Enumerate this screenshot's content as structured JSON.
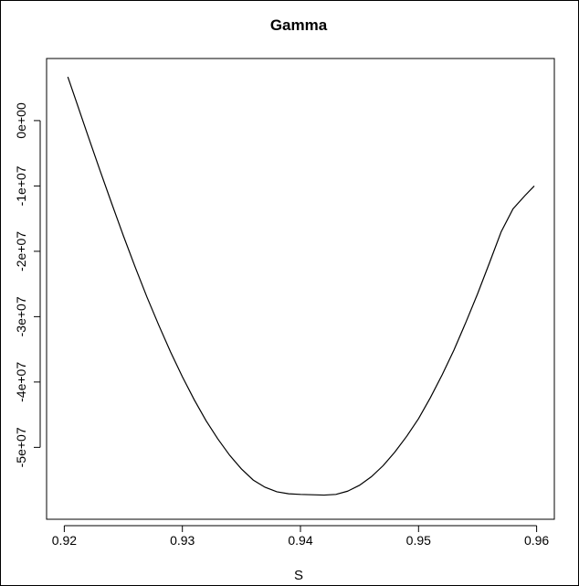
{
  "chart_data": {
    "type": "line",
    "title": "Gamma",
    "xlabel": "S",
    "ylabel": "",
    "xlim": [
      0.9185,
      0.9615
    ],
    "ylim": [
      -61000000,
      9500000
    ],
    "grid": false,
    "legend": "none",
    "line_color": "#000000",
    "x_ticks": [
      0.92,
      0.93,
      0.94,
      0.95,
      0.96
    ],
    "x_tick_labels": [
      "0.92",
      "0.93",
      "0.94",
      "0.95",
      "0.96"
    ],
    "y_ticks": [
      0,
      -10000000,
      -20000000,
      -30000000,
      -40000000,
      -50000000
    ],
    "y_tick_labels": [
      "0e+00",
      "-1e+07",
      "-2e+07",
      "-3e+07",
      "-4e+07",
      "-5e+07"
    ],
    "series": [
      {
        "x": [
          0.9203,
          0.921,
          0.922,
          0.923,
          0.924,
          0.925,
          0.926,
          0.927,
          0.928,
          0.929,
          0.93,
          0.931,
          0.932,
          0.933,
          0.934,
          0.935,
          0.936,
          0.937,
          0.938,
          0.939,
          0.94,
          0.941,
          0.942,
          0.943,
          0.944,
          0.945,
          0.946,
          0.947,
          0.948,
          0.949,
          0.95,
          0.951,
          0.952,
          0.953,
          0.954,
          0.955,
          0.956,
          0.957,
          0.958,
          0.959,
          0.9598
        ],
        "y": [
          6700000,
          3000000,
          -2300000,
          -7500000,
          -12600000,
          -17600000,
          -22400000,
          -27000000,
          -31300000,
          -35400000,
          -39200000,
          -42700000,
          -45900000,
          -48700000,
          -51200000,
          -53300000,
          -55000000,
          -56100000,
          -56800000,
          -57100000,
          -57200000,
          -57250000,
          -57300000,
          -57200000,
          -56700000,
          -55800000,
          -54500000,
          -52800000,
          -50700000,
          -48300000,
          -45600000,
          -42400000,
          -38900000,
          -35100000,
          -30900000,
          -26500000,
          -21800000,
          -17000000,
          -13500000,
          -11500000,
          -10000000
        ]
      }
    ]
  }
}
